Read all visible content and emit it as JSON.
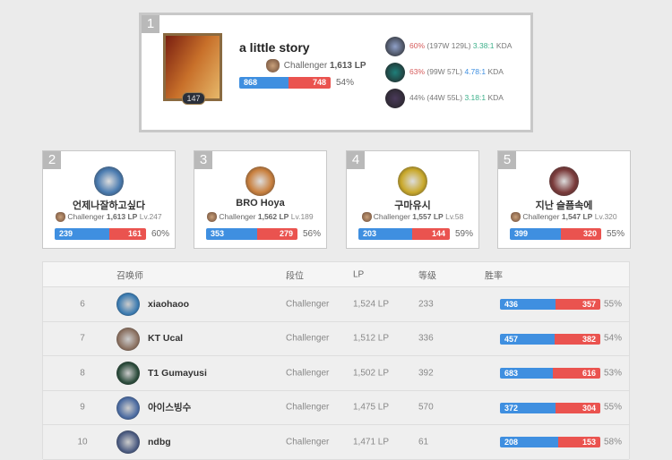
{
  "columns": {
    "summoner": "召唤师",
    "tier": "段位",
    "lp": "LP",
    "level": "等级",
    "winrate": "胜率"
  },
  "colors": {
    "win": "#3f8fe0",
    "loss": "#ea534f",
    "kda_green": "#3cb08a",
    "kda_blue": "#3f8fe0",
    "winrate_red": "#d65c5c"
  },
  "top": {
    "rank": "1",
    "name": "a little story",
    "tier": "Challenger",
    "lp": "1,613 LP",
    "level": "147",
    "wins": 868,
    "losses": 748,
    "wins_label": "868",
    "losses_label": "748",
    "winrate": "54%",
    "champions": [
      {
        "winrate": "60%",
        "record": "(197W 129L)",
        "kda": "3.38:1",
        "kda_suffix": "KDA",
        "color": "#8fa0c8"
      },
      {
        "winrate": "63%",
        "record": "(99W 57L)",
        "kda": "4.78:1",
        "kda_suffix": "KDA",
        "color": "#1f7f7a"
      },
      {
        "winrate": "44%",
        "record": "(44W 55L)",
        "kda": "3.18:1",
        "kda_suffix": "KDA",
        "color": "#4a3a5a"
      }
    ]
  },
  "cards": [
    {
      "rank": "2",
      "name": "언제나잘하고싶다",
      "tier": "Challenger",
      "lp": "1,613 LP",
      "level": "Lv.247",
      "wins": 239,
      "losses": 161,
      "wins_label": "239",
      "losses_label": "161",
      "winrate": "60%",
      "color": "#4a7bb0"
    },
    {
      "rank": "3",
      "name": "BRO Hoya",
      "tier": "Challenger",
      "lp": "1,562 LP",
      "level": "Lv.189",
      "wins": 353,
      "losses": 279,
      "wins_label": "353",
      "losses_label": "279",
      "winrate": "56%",
      "color": "#c9803e"
    },
    {
      "rank": "4",
      "name": "구마유시",
      "tier": "Challenger",
      "lp": "1,557 LP",
      "level": "Lv.58",
      "wins": 203,
      "losses": 144,
      "wins_label": "203",
      "losses_label": "144",
      "winrate": "59%",
      "color": "#c9a82a"
    },
    {
      "rank": "5",
      "name": "지난 슬픔속에",
      "tier": "Challenger",
      "lp": "1,547 LP",
      "level": "Lv.320",
      "wins": 399,
      "losses": 320,
      "wins_label": "399",
      "losses_label": "320",
      "winrate": "55%",
      "color": "#7a3a3a"
    }
  ],
  "rows": [
    {
      "rank": "6",
      "name": "xiaohaoo",
      "tier": "Challenger",
      "lp": "1,524 LP",
      "level": "233",
      "wins": 436,
      "losses": 357,
      "wins_label": "436",
      "losses_label": "357",
      "winrate": "55%",
      "color": "#3a7ab0"
    },
    {
      "rank": "7",
      "name": "KT Ucal",
      "tier": "Challenger",
      "lp": "1,512 LP",
      "level": "336",
      "wins": 457,
      "losses": 382,
      "wins_label": "457",
      "losses_label": "382",
      "winrate": "54%",
      "color": "#8a7060"
    },
    {
      "rank": "8",
      "name": "T1 Gumayusi",
      "tier": "Challenger",
      "lp": "1,502 LP",
      "level": "392",
      "wins": 683,
      "losses": 616,
      "wins_label": "683",
      "losses_label": "616",
      "winrate": "53%",
      "color": "#2a4a3a"
    },
    {
      "rank": "9",
      "name": "아이스빙수",
      "tier": "Challenger",
      "lp": "1,475 LP",
      "level": "570",
      "wins": 372,
      "losses": 304,
      "wins_label": "372",
      "losses_label": "304",
      "winrate": "55%",
      "color": "#4a6aa0"
    },
    {
      "rank": "10",
      "name": "ndbg",
      "tier": "Challenger",
      "lp": "1,471 LP",
      "level": "61",
      "wins": 208,
      "losses": 153,
      "wins_label": "208",
      "losses_label": "153",
      "winrate": "58%",
      "color": "#4a5a80"
    }
  ]
}
